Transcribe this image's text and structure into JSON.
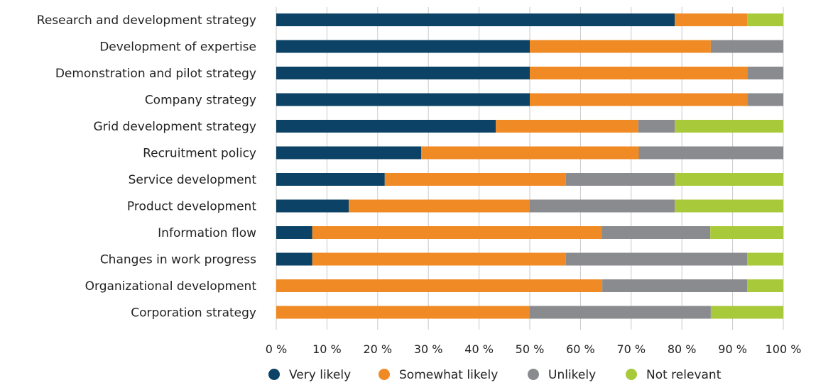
{
  "chart_data": {
    "type": "bar",
    "orientation": "horizontal",
    "stacked": true,
    "categories": [
      "Research and development strategy",
      "Development of expertise",
      "Demonstration and pilot strategy",
      "Company strategy",
      "Grid development strategy",
      "Recruitment policy",
      "Service development",
      "Product development",
      "Information flow",
      "Changes in work progress",
      "Organizational development",
      "Corporation strategy"
    ],
    "series": [
      {
        "name": "Very likely",
        "color": "#0b4265",
        "values": [
          78.6,
          50.0,
          50.0,
          50.0,
          43.3,
          28.6,
          21.4,
          14.3,
          7.1,
          7.1,
          0,
          0
        ]
      },
      {
        "name": "Somewhat likely",
        "color": "#f08a24",
        "values": [
          14.3,
          35.7,
          42.9,
          42.9,
          28.1,
          42.9,
          35.7,
          35.7,
          57.1,
          50.0,
          64.3,
          50.0
        ]
      },
      {
        "name": "Unlikely",
        "color": "#8a8b8e",
        "values": [
          0,
          14.3,
          7.1,
          7.1,
          7.2,
          28.5,
          21.5,
          28.6,
          21.4,
          35.8,
          28.6,
          35.7
        ]
      },
      {
        "name": "Not relevant",
        "color": "#a8c939",
        "values": [
          7.1,
          0,
          0,
          0,
          21.4,
          0,
          21.4,
          21.4,
          14.4,
          7.1,
          7.1,
          14.3
        ]
      }
    ],
    "xlim": [
      0,
      100
    ],
    "x_ticks": [
      "0 %",
      "10 %",
      "20 %",
      "30 %",
      "40 %",
      "50 %",
      "60 %",
      "70 %",
      "80 %",
      "90 %",
      "100 %"
    ],
    "grid": "vertical",
    "legend_position": "bottom",
    "title": "",
    "xlabel": "",
    "ylabel": ""
  }
}
